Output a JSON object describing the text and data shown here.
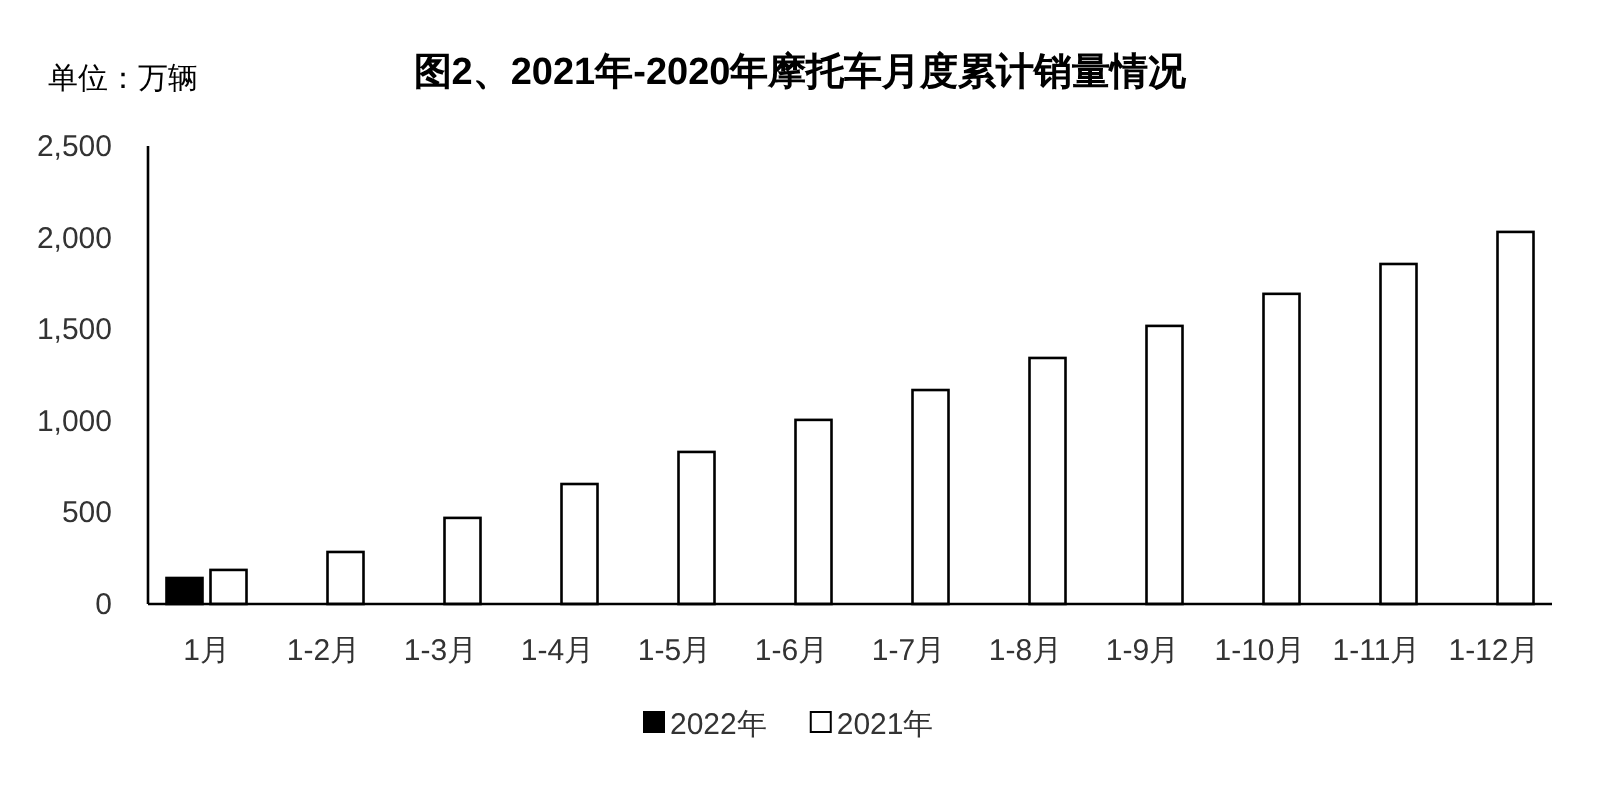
{
  "chart_data": {
    "type": "bar",
    "title": "图2、2021年-2020年摩托车月度累计销量情况",
    "ylabel": "单位：万辆",
    "categories": [
      "1月",
      "1-2月",
      "1-3月",
      "1-4月",
      "1-5月",
      "1-6月",
      "1-7月",
      "1-8月",
      "1-9月",
      "1-10月",
      "1-11月",
      "1-12月"
    ],
    "series": [
      {
        "name": "2022年",
        "color": "#000000",
        "values": [
          142,
          null,
          null,
          null,
          null,
          null,
          null,
          null,
          null,
          null,
          null,
          null
        ]
      },
      {
        "name": "2021年",
        "color": "#ffffff",
        "values": [
          186,
          284,
          470,
          655,
          830,
          1005,
          1168,
          1343,
          1518,
          1693,
          1856,
          2031
        ]
      }
    ],
    "ylim": [
      0,
      2500
    ],
    "yticks": [
      {
        "value": 0,
        "label": "0"
      },
      {
        "value": 500,
        "label": "500"
      },
      {
        "value": 1000,
        "label": "1,000"
      },
      {
        "value": 1500,
        "label": "1,500"
      },
      {
        "value": 2000,
        "label": "2,000"
      },
      {
        "value": 2500,
        "label": "2,500"
      }
    ],
    "grid": false,
    "legend": "bottom"
  }
}
